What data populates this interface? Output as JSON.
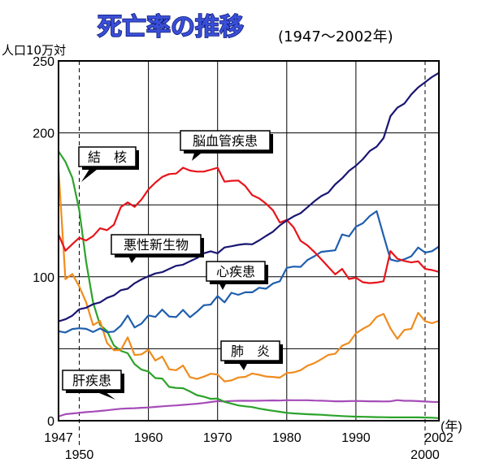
{
  "chart_data": {
    "type": "line",
    "title": "死亡率の推移",
    "subtitle": "(1947〜2002年)",
    "ylabel": "人口10万対",
    "xlabel": "(年)",
    "xlim": [
      1947,
      2002
    ],
    "ylim": [
      0,
      250
    ],
    "y_ticks": [
      "0",
      "100",
      "200",
      "250"
    ],
    "x_ticks": [
      "1947",
      "1950",
      "1960",
      "1970",
      "1980",
      "1990",
      "2000",
      "2002"
    ],
    "grid": true,
    "series": [
      {
        "name": "脳血管疾患",
        "color": "#e8141b",
        "x": [
          1947,
          1948,
          1949,
          1950,
          1951,
          1952,
          1953,
          1954,
          1955,
          1956,
          1957,
          1958,
          1959,
          1960,
          1961,
          1962,
          1963,
          1964,
          1965,
          1966,
          1967,
          1968,
          1969,
          1970,
          1971,
          1972,
          1973,
          1974,
          1975,
          1976,
          1977,
          1978,
          1979,
          1980,
          1981,
          1982,
          1983,
          1984,
          1985,
          1986,
          1987,
          1988,
          1989,
          1990,
          1991,
          1992,
          1993,
          1994,
          1995,
          1996,
          1997,
          1998,
          1999,
          2000,
          2001,
          2002
        ],
        "values": [
          129.4,
          118.1,
          122.7,
          127.1,
          125.2,
          128.3,
          133.7,
          132.4,
          136.1,
          148.4,
          151.7,
          148.6,
          153.7,
          160.7,
          165.4,
          169.4,
          171.4,
          171.7,
          175.8,
          173.8,
          173.1,
          173.1,
          174.4,
          175.8,
          166.1,
          166.7,
          166.9,
          163.1,
          156.7,
          154.5,
          150.8,
          146.2,
          137.7,
          139.5,
          134.3,
          125.0,
          121.8,
          117.2,
          112.2,
          106.9,
          101.7,
          105.5,
          98.5,
          99.4,
          96.2,
          95.6,
          96.0,
          96.9,
          117.9,
          112.6,
          111.0,
          110.0,
          110.8,
          105.5,
          104.7,
          103.4
        ]
      },
      {
        "name": "悪性新生物",
        "color": "#1a1673",
        "x": [
          1947,
          1948,
          1949,
          1950,
          1951,
          1952,
          1953,
          1954,
          1955,
          1956,
          1957,
          1958,
          1959,
          1960,
          1961,
          1962,
          1963,
          1964,
          1965,
          1966,
          1967,
          1968,
          1969,
          1970,
          1971,
          1972,
          1973,
          1974,
          1975,
          1976,
          1977,
          1978,
          1979,
          1980,
          1981,
          1982,
          1983,
          1984,
          1985,
          1986,
          1987,
          1988,
          1989,
          1990,
          1991,
          1992,
          1993,
          1994,
          1995,
          1996,
          1997,
          1998,
          1999,
          2000,
          2001,
          2002
        ],
        "values": [
          69.0,
          70.5,
          73.0,
          77.4,
          78.5,
          80.9,
          82.2,
          85.3,
          87.1,
          90.7,
          91.7,
          95.5,
          98.2,
          100.4,
          102.3,
          103.2,
          105.5,
          107.6,
          108.4,
          110.8,
          113.0,
          116.3,
          117.7,
          116.3,
          120.4,
          121.2,
          122.2,
          122.8,
          122.6,
          125.3,
          128.4,
          131.3,
          135.7,
          139.1,
          142.0,
          144.2,
          148.3,
          152.5,
          156.1,
          158.5,
          164.2,
          168.4,
          173.6,
          177.2,
          181.7,
          187.4,
          190.4,
          196.4,
          211.6,
          217.5,
          220.4,
          226.7,
          231.6,
          235.2,
          238.8,
          241.7
        ]
      },
      {
        "name": "心疾患",
        "color": "#1f5fae",
        "x": [
          1947,
          1948,
          1949,
          1950,
          1951,
          1952,
          1953,
          1954,
          1955,
          1956,
          1957,
          1958,
          1959,
          1960,
          1961,
          1962,
          1963,
          1964,
          1965,
          1966,
          1967,
          1968,
          1969,
          1970,
          1971,
          1972,
          1973,
          1974,
          1975,
          1976,
          1977,
          1978,
          1979,
          1980,
          1981,
          1982,
          1983,
          1984,
          1985,
          1986,
          1987,
          1988,
          1989,
          1990,
          1991,
          1992,
          1993,
          1994,
          1995,
          1996,
          1997,
          1998,
          1999,
          2000,
          2001,
          2002
        ],
        "values": [
          62.2,
          61.3,
          63.7,
          64.2,
          63.8,
          61.6,
          64.1,
          61.5,
          61.9,
          66.0,
          73.1,
          64.8,
          67.5,
          73.2,
          72.1,
          77.2,
          72.4,
          72.0,
          77.0,
          71.9,
          75.7,
          80.2,
          80.7,
          86.7,
          82.2,
          88.9,
          87.5,
          89.2,
          89.2,
          92.4,
          91.7,
          95.3,
          96.9,
          106.2,
          107.1,
          106.9,
          111.7,
          114.3,
          117.3,
          117.9,
          118.4,
          129.4,
          128.1,
          134.8,
          137.2,
          142.2,
          145.6,
          128.6,
          112.0,
          110.8,
          112.2,
          114.3,
          120.4,
          116.8,
          117.8,
          121.0
        ]
      },
      {
        "name": "肺炎",
        "color": "#f08c1e",
        "x": [
          1947,
          1948,
          1949,
          1950,
          1951,
          1952,
          1953,
          1954,
          1955,
          1956,
          1957,
          1958,
          1959,
          1960,
          1961,
          1962,
          1963,
          1964,
          1965,
          1966,
          1967,
          1968,
          1969,
          1970,
          1971,
          1972,
          1973,
          1974,
          1975,
          1976,
          1977,
          1978,
          1979,
          1980,
          1981,
          1982,
          1983,
          1984,
          1985,
          1986,
          1987,
          1988,
          1989,
          1990,
          1991,
          1992,
          1993,
          1994,
          1995,
          1996,
          1997,
          1998,
          1999,
          2000,
          2001,
          2002
        ],
        "values": [
          174.8,
          98.3,
          101.9,
          93.2,
          82.2,
          66.4,
          69.3,
          54.1,
          48.9,
          49.1,
          57.9,
          45.6,
          46.1,
          49.3,
          41.8,
          44.6,
          35.7,
          35.1,
          38.3,
          30.3,
          29.0,
          30.6,
          32.6,
          32.1,
          27.3,
          28.0,
          30.0,
          30.5,
          32.8,
          31.9,
          30.7,
          30.4,
          29.9,
          33.1,
          33.6,
          35.1,
          38.2,
          40.0,
          42.7,
          45.7,
          46.5,
          52.1,
          54.1,
          60.7,
          63.8,
          66.4,
          72.1,
          74.2,
          64.1,
          56.9,
          63.1,
          63.8,
          75.0,
          69.2,
          67.7,
          69.4
        ]
      },
      {
        "name": "結核",
        "color": "#2ba32a",
        "x": [
          1947,
          1948,
          1949,
          1950,
          1951,
          1952,
          1953,
          1954,
          1955,
          1956,
          1957,
          1958,
          1959,
          1960,
          1961,
          1962,
          1963,
          1964,
          1965,
          1966,
          1967,
          1968,
          1969,
          1970,
          1971,
          1972,
          1973,
          1974,
          1975,
          1976,
          1977,
          1978,
          1979,
          1980,
          1981,
          1982,
          1983,
          1984,
          1985,
          1986,
          1987,
          1988,
          1989,
          1990,
          1991,
          1992,
          1993,
          1994,
          1995,
          1996,
          1997,
          1998,
          1999,
          2000,
          2001,
          2002
        ],
        "values": [
          187.2,
          179.9,
          168.8,
          146.4,
          110.3,
          82.2,
          66.5,
          62.4,
          52.3,
          48.6,
          46.9,
          39.3,
          35.5,
          34.2,
          29.6,
          29.3,
          23.5,
          22.8,
          22.6,
          20.3,
          17.8,
          16.7,
          15.2,
          15.4,
          13.1,
          11.9,
          10.6,
          10.0,
          9.5,
          8.4,
          7.6,
          6.9,
          6.2,
          5.5,
          5.1,
          4.8,
          4.5,
          4.3,
          4.1,
          3.8,
          3.5,
          3.2,
          3.0,
          2.8,
          2.7,
          2.6,
          2.5,
          2.4,
          2.3,
          2.3,
          2.3,
          2.3,
          2.3,
          2.2,
          2.1,
          1.8
        ]
      },
      {
        "name": "肝疾患",
        "color": "#a54cb8",
        "x": [
          1947,
          1948,
          1949,
          1950,
          1951,
          1952,
          1953,
          1954,
          1955,
          1956,
          1957,
          1958,
          1959,
          1960,
          1961,
          1962,
          1963,
          1964,
          1965,
          1966,
          1967,
          1968,
          1969,
          1970,
          1971,
          1972,
          1973,
          1974,
          1975,
          1976,
          1977,
          1978,
          1979,
          1980,
          1981,
          1982,
          1983,
          1984,
          1985,
          1986,
          1987,
          1988,
          1989,
          1990,
          1991,
          1992,
          1993,
          1994,
          1995,
          1996,
          1997,
          1998,
          1999,
          2000,
          2001,
          2002
        ],
        "values": [
          3.0,
          4.5,
          5.0,
          5.5,
          6.0,
          6.3,
          6.8,
          7.2,
          7.8,
          8.3,
          8.5,
          8.7,
          9.0,
          9.2,
          9.6,
          10.0,
          10.3,
          10.6,
          11.0,
          11.4,
          11.8,
          12.3,
          13.0,
          13.6,
          13.4,
          13.7,
          13.8,
          13.9,
          13.8,
          13.9,
          14.0,
          14.1,
          14.0,
          14.3,
          14.2,
          14.2,
          14.2,
          14.0,
          13.9,
          13.7,
          13.5,
          13.5,
          13.6,
          13.7,
          13.6,
          13.5,
          13.5,
          13.4,
          13.5,
          14.3,
          13.8,
          13.8,
          13.6,
          13.3,
          13.1,
          13.0
        ]
      }
    ],
    "annotations": [
      {
        "label": "結　核",
        "series": "結核"
      },
      {
        "label": "脳血管疾患",
        "series": "脳血管疾患"
      },
      {
        "label": "悪性新生物",
        "series": "悪性新生物"
      },
      {
        "label": "心疾患",
        "series": "心疾患"
      },
      {
        "label": "肺　炎",
        "series": "肺炎"
      },
      {
        "label": "肝疾患",
        "series": "肝疾患"
      }
    ]
  }
}
